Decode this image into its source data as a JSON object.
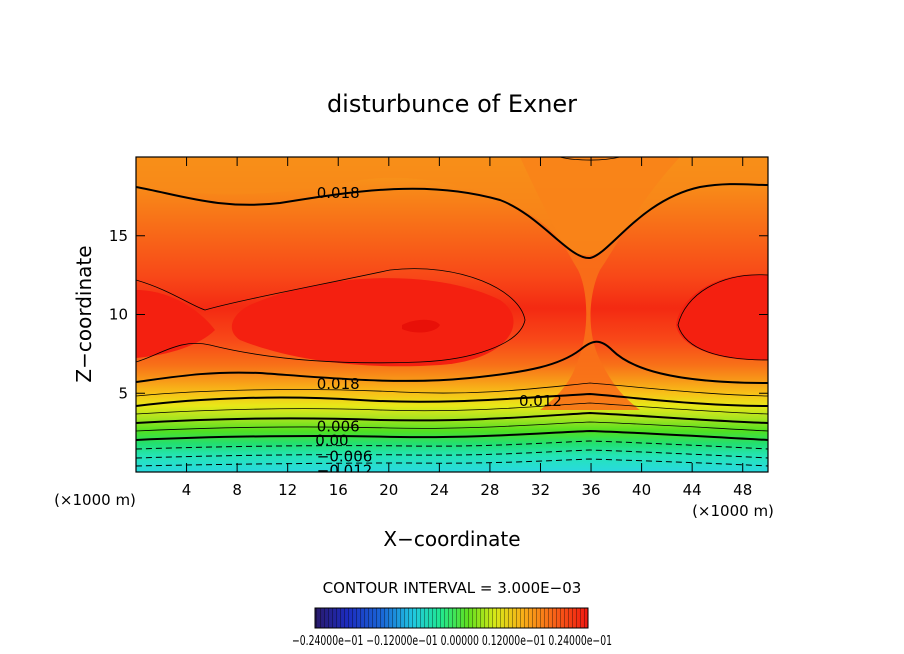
{
  "chart_data": {
    "type": "contour",
    "title": "disturbunce of Exner",
    "xlabel": "X−coordinate",
    "ylabel": "Z−coordinate",
    "x_unit": "(×1000 m)",
    "y_unit": "(×1000 m)",
    "xlim": [
      0,
      50
    ],
    "ylim": [
      0,
      20
    ],
    "xticks": [
      "4",
      "8",
      "12",
      "16",
      "20",
      "24",
      "28",
      "32",
      "36",
      "40",
      "44",
      "48"
    ],
    "xtick_values": [
      4,
      8,
      12,
      16,
      20,
      24,
      28,
      32,
      36,
      40,
      44,
      48
    ],
    "yticks": [
      "5",
      "10",
      "15"
    ],
    "ytick_values": [
      5,
      10,
      15
    ],
    "contour_interval_text": "CONTOUR INTERVAL = 3.000E−03",
    "contour_interval": 0.003,
    "contour_labels": [
      {
        "text": "0.018",
        "x": 16,
        "z": 17.7
      },
      {
        "text": "0.018",
        "x": 16,
        "z": 5.6
      },
      {
        "text": "0.012",
        "x": 32,
        "z": 4.5
      },
      {
        "text": "0.006",
        "x": 16,
        "z": 2.9
      },
      {
        "text": "0.00",
        "x": 15.5,
        "z": 2.0
      },
      {
        "text": "−0.006",
        "x": 16.5,
        "z": 1.0
      },
      {
        "text": "−0.012",
        "x": 16.5,
        "z": 0.1
      }
    ],
    "colorbar": {
      "labels_text": "−0.24000e−01  −0.12000e−01  0.00000  0.12000e−01  0.24000e−01",
      "min": -0.024,
      "max": 0.024,
      "colors": [
        "#2a1a7a",
        "#1c2cc0",
        "#1a5ad8",
        "#1a9ae0",
        "#20d8e0",
        "#20e890",
        "#40e020",
        "#9ae020",
        "#e0e818",
        "#f8c818",
        "#f8a018",
        "#f87818",
        "#f84a18",
        "#f01810"
      ]
    }
  }
}
